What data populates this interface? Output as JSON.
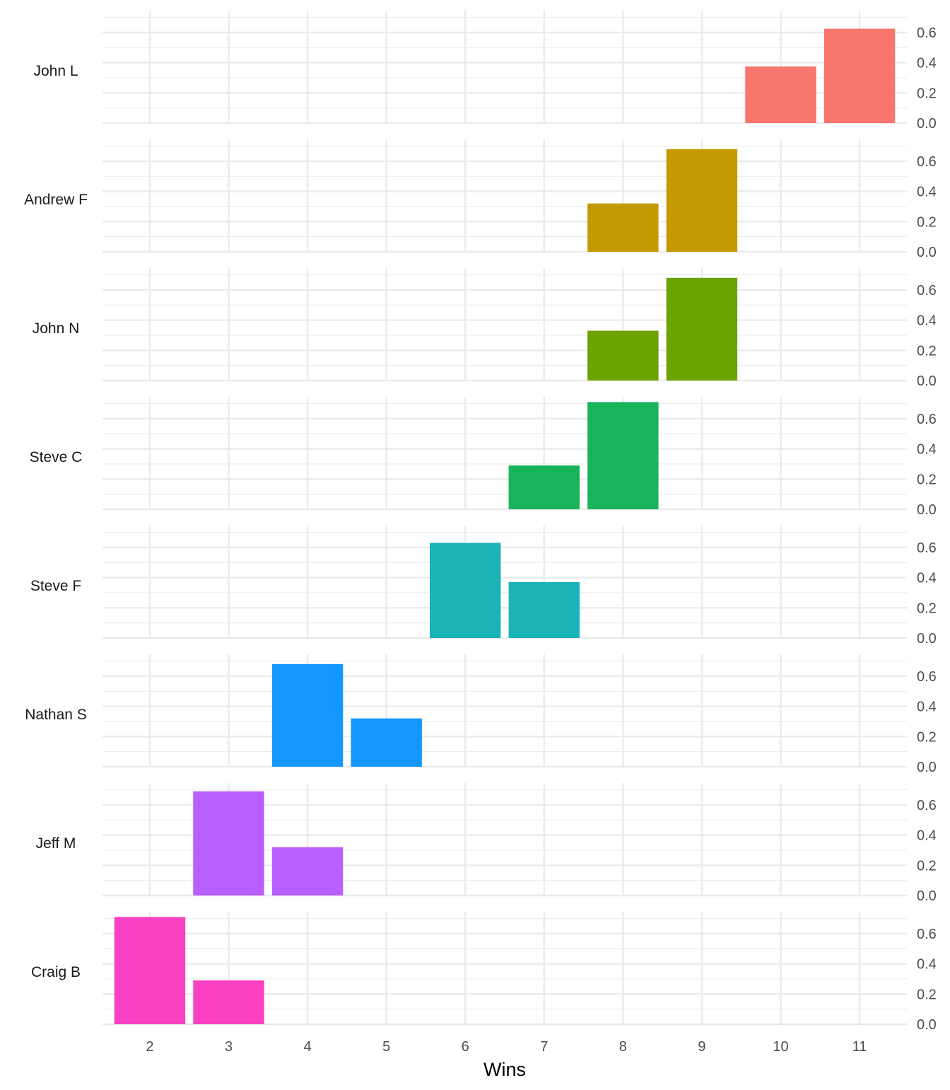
{
  "chart_data": {
    "type": "bar",
    "layout": "faceted-rows",
    "xlabel": "Wins",
    "ylabel": "",
    "x_ticks": [
      2,
      3,
      4,
      5,
      6,
      7,
      8,
      9,
      10,
      11
    ],
    "xlim": [
      1.4,
      11.6
    ],
    "y_ticks": [
      0.0,
      0.2,
      0.4,
      0.6
    ],
    "y_tick_labels": [
      "0.0",
      "0.2",
      "0.4",
      "0.6"
    ],
    "ylim": [
      0,
      0.72
    ],
    "grid": true,
    "legend": "none",
    "strip_position": "left",
    "panels": [
      {
        "name": "John L",
        "color": "#F8766D",
        "bars": [
          {
            "x": 10,
            "y": 0.375
          },
          {
            "x": 11,
            "y": 0.625
          }
        ]
      },
      {
        "name": "Andrew F",
        "color": "#C49A00",
        "bars": [
          {
            "x": 8,
            "y": 0.32
          },
          {
            "x": 9,
            "y": 0.68
          }
        ]
      },
      {
        "name": "John N",
        "color": "#6BA300",
        "bars": [
          {
            "x": 8,
            "y": 0.33
          },
          {
            "x": 9,
            "y": 0.68
          }
        ]
      },
      {
        "name": "Steve C",
        "color": "#19B45A",
        "bars": [
          {
            "x": 7,
            "y": 0.29
          },
          {
            "x": 8,
            "y": 0.71
          }
        ]
      },
      {
        "name": "Steve F",
        "color": "#1AB3B8",
        "bars": [
          {
            "x": 6,
            "y": 0.63
          },
          {
            "x": 7,
            "y": 0.37
          }
        ]
      },
      {
        "name": "Nathan S",
        "color": "#1496FF",
        "bars": [
          {
            "x": 4,
            "y": 0.68
          },
          {
            "x": 5,
            "y": 0.32
          }
        ]
      },
      {
        "name": "Jeff M",
        "color": "#B95EFF",
        "bars": [
          {
            "x": 3,
            "y": 0.69
          },
          {
            "x": 4,
            "y": 0.32
          }
        ]
      },
      {
        "name": "Craig B",
        "color": "#FA41C1",
        "bars": [
          {
            "x": 2,
            "y": 0.71
          },
          {
            "x": 3,
            "y": 0.29
          }
        ]
      }
    ]
  }
}
